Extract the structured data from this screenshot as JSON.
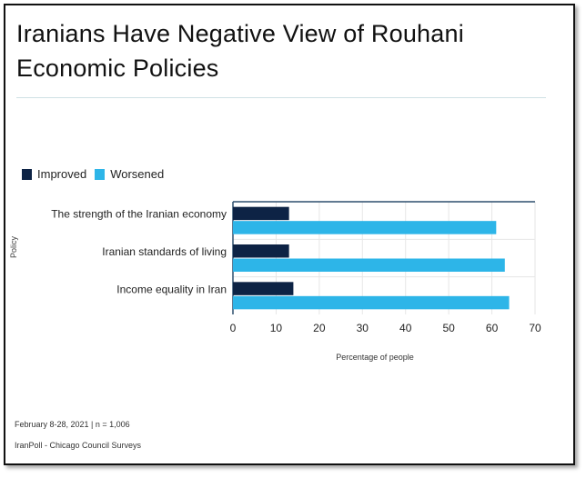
{
  "title": "Iranians Have Negative View of Rouhani Economic Policies",
  "legend": [
    {
      "label": "Improved",
      "color": "#0d2345"
    },
    {
      "label": "Worsened",
      "color": "#2db5e8"
    }
  ],
  "chart_data": {
    "type": "bar",
    "orientation": "horizontal",
    "title": "Iranians Have Negative View of Rouhani Economic Policies",
    "categories": [
      "The strength of the Iranian economy",
      "Iranian standards of living",
      "Income equality in Iran"
    ],
    "series": [
      {
        "name": "Improved",
        "color": "#0d2345",
        "values": [
          13,
          13,
          14
        ]
      },
      {
        "name": "Worsened",
        "color": "#2db5e8",
        "values": [
          61,
          63,
          64
        ]
      }
    ],
    "xlabel": "Percentage of people",
    "ylabel": "Policy",
    "xlim": [
      0,
      70
    ],
    "xticks": [
      "0",
      "10",
      "20",
      "30",
      "40",
      "50",
      "60",
      "70"
    ],
    "grid": true,
    "legend_position": "top-left"
  },
  "footer": {
    "date_sample": "February 8-28, 2021 | n = 1,006",
    "source": "IranPoll - Chicago Council Surveys"
  }
}
